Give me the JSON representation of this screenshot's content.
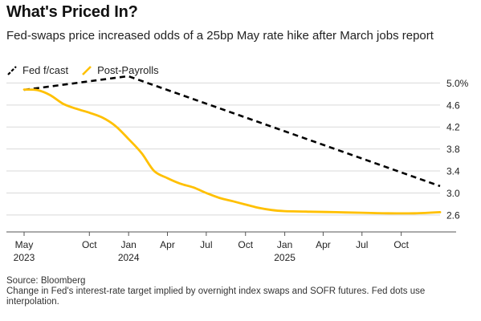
{
  "title": "What's Priced In?",
  "subtitle": "Fed-swaps price increased odds of a 25bp May rate hike after March jobs report",
  "source": "Source: Bloomberg",
  "note": "Change in Fed's interest-rate target implied by overnight index swaps and SOFR futures. Fed dots use interpolation.",
  "chart_data": {
    "type": "line",
    "title": "What's Priced In?",
    "subtitle": "Fed-swaps price increased odds of a 25bp May rate hike after March jobs report",
    "xlabel": "",
    "ylabel": "",
    "x_range": [
      "2023-05-01",
      "2025-12-31"
    ],
    "ylim": [
      2.35,
      5.05
    ],
    "y_ticks": [
      {
        "value": 5.0,
        "label": "5.0%"
      },
      {
        "value": 4.6,
        "label": "4.6"
      },
      {
        "value": 4.2,
        "label": "4.2"
      },
      {
        "value": 3.8,
        "label": "3.8"
      },
      {
        "value": 3.4,
        "label": "3.4"
      },
      {
        "value": 3.0,
        "label": "3.0"
      },
      {
        "value": 2.6,
        "label": "2.6"
      }
    ],
    "x_ticks": [
      {
        "date": "2023-05-01",
        "label": "May",
        "year": "2023"
      },
      {
        "date": "2023-10-01",
        "label": "Oct",
        "year": ""
      },
      {
        "date": "2024-01-01",
        "label": "Jan",
        "year": "2024"
      },
      {
        "date": "2024-04-01",
        "label": "Apr",
        "year": ""
      },
      {
        "date": "2024-07-01",
        "label": "Jul",
        "year": ""
      },
      {
        "date": "2024-10-01",
        "label": "Oct",
        "year": ""
      },
      {
        "date": "2025-01-01",
        "label": "Jan",
        "year": "2025"
      },
      {
        "date": "2025-04-01",
        "label": "Apr",
        "year": ""
      },
      {
        "date": "2025-07-01",
        "label": "Jul",
        "year": ""
      },
      {
        "date": "2025-10-01",
        "label": "Oct",
        "year": ""
      }
    ],
    "grid": "horizontal",
    "legend_position": "top-left",
    "series": [
      {
        "name": "Fed f/cast",
        "color": "#000000",
        "style": "dashed",
        "points": [
          {
            "x": "2023-05-01",
            "y": 4.875
          },
          {
            "x": "2023-12-31",
            "y": 5.125
          },
          {
            "x": "2024-12-31",
            "y": 4.125
          },
          {
            "x": "2025-12-31",
            "y": 3.125
          }
        ]
      },
      {
        "name": "Post-Payrolls",
        "color": "#FFC000",
        "style": "solid",
        "points": [
          {
            "x": "2023-05-01",
            "y": 4.88
          },
          {
            "x": "2023-06-01",
            "y": 4.87
          },
          {
            "x": "2023-07-01",
            "y": 4.78
          },
          {
            "x": "2023-08-01",
            "y": 4.62
          },
          {
            "x": "2023-09-01",
            "y": 4.53
          },
          {
            "x": "2023-10-01",
            "y": 4.46
          },
          {
            "x": "2023-11-01",
            "y": 4.37
          },
          {
            "x": "2023-12-01",
            "y": 4.22
          },
          {
            "x": "2024-01-01",
            "y": 3.98
          },
          {
            "x": "2024-02-01",
            "y": 3.72
          },
          {
            "x": "2024-03-01",
            "y": 3.4
          },
          {
            "x": "2024-04-01",
            "y": 3.27
          },
          {
            "x": "2024-05-01",
            "y": 3.17
          },
          {
            "x": "2024-06-01",
            "y": 3.1
          },
          {
            "x": "2024-07-01",
            "y": 3.0
          },
          {
            "x": "2024-08-01",
            "y": 2.91
          },
          {
            "x": "2024-09-01",
            "y": 2.85
          },
          {
            "x": "2024-10-01",
            "y": 2.79
          },
          {
            "x": "2024-11-01",
            "y": 2.73
          },
          {
            "x": "2024-12-01",
            "y": 2.69
          },
          {
            "x": "2025-01-01",
            "y": 2.67
          },
          {
            "x": "2025-03-01",
            "y": 2.66
          },
          {
            "x": "2025-05-01",
            "y": 2.65
          },
          {
            "x": "2025-07-01",
            "y": 2.64
          },
          {
            "x": "2025-09-01",
            "y": 2.63
          },
          {
            "x": "2025-11-01",
            "y": 2.63
          },
          {
            "x": "2025-12-31",
            "y": 2.65
          }
        ]
      }
    ]
  }
}
